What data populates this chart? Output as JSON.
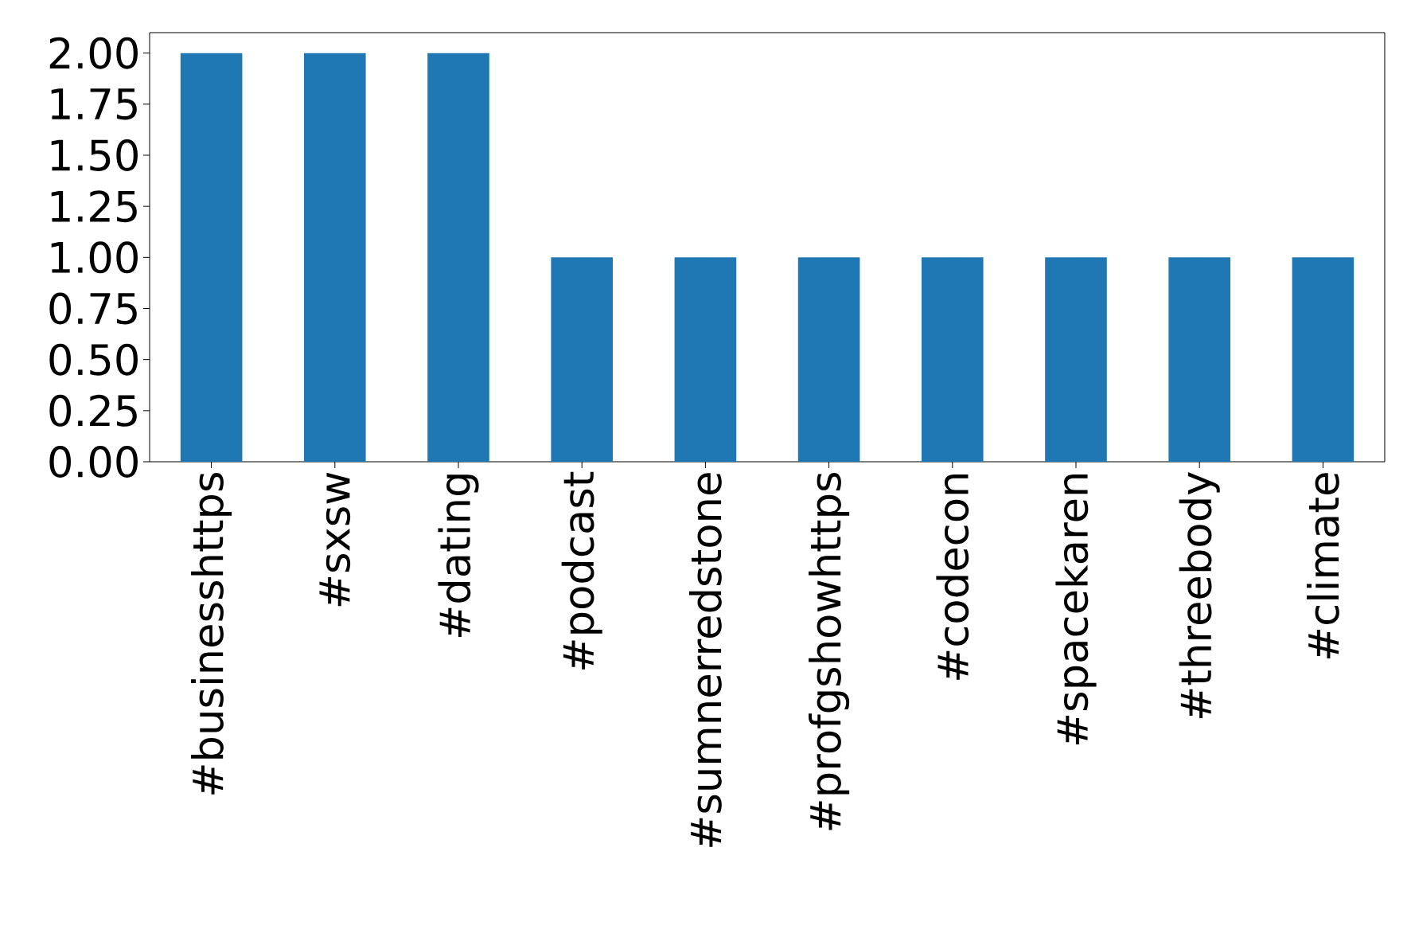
{
  "chart_data": {
    "type": "bar",
    "categories": [
      "#businesshttps",
      "#sxsw",
      "#dating",
      "#podcast",
      "#sumnerredstone",
      "#profgshowhttps",
      "#codecon",
      "#spacekaren",
      "#threebody",
      "#climate"
    ],
    "values": [
      2,
      2,
      2,
      1,
      1,
      1,
      1,
      1,
      1,
      1
    ],
    "color": "#1f77b4",
    "ylim": [
      0,
      2.1
    ],
    "yticks": [
      {
        "value": 0,
        "label": "0.00"
      },
      {
        "value": 0.25,
        "label": "0.25"
      },
      {
        "value": 0.5,
        "label": "0.50"
      },
      {
        "value": 0.75,
        "label": "0.75"
      },
      {
        "value": 1,
        "label": "1.00"
      },
      {
        "value": 1.25,
        "label": "1.25"
      },
      {
        "value": 1.5,
        "label": "1.50"
      },
      {
        "value": 1.75,
        "label": "1.75"
      },
      {
        "value": 2,
        "label": "2.00"
      }
    ],
    "tick_labels": [
      "x",
      "y"
    ]
  }
}
